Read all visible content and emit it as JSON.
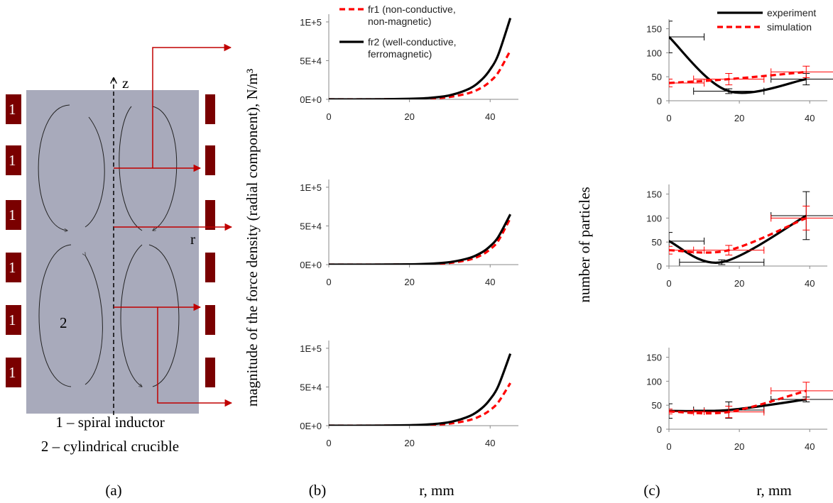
{
  "diagram": {
    "inductor_labels": [
      "1",
      "1",
      "1",
      "1",
      "1",
      "1"
    ],
    "crucible_label": "2",
    "z_label": "z",
    "r_label": "r",
    "legend": [
      "1 – spiral inductor",
      "2 – cylindrical crucible"
    ]
  },
  "panels": {
    "a": {
      "label": "(a)"
    },
    "b": {
      "label": "(b)",
      "xlabel": "r, mm",
      "ylabel": "magnitude of the force density (radial component), N/m³"
    },
    "c": {
      "label": "(c)",
      "xlabel": "r, mm",
      "ylabel": "number of particles"
    }
  },
  "chart_data": [
    {
      "type": "line",
      "xlim": [
        0,
        47
      ],
      "ylim": [
        0,
        110000
      ],
      "xticks": [
        0,
        20,
        40
      ],
      "yticks": [
        {
          "value": 0,
          "label": "0E+0"
        },
        {
          "value": 50000,
          "label": "5E+4"
        },
        {
          "value": 100000,
          "label": "1E+5"
        }
      ],
      "legend": "upper left",
      "x": [
        0,
        10,
        20,
        25,
        30,
        35,
        38,
        40,
        42,
        45
      ],
      "series": [
        {
          "name": "fr1 (non-conductive, non-magnetic)",
          "color": "#ff0000",
          "style": "dashed",
          "values": [
            0,
            0,
            400,
            1100,
            3100,
            8500,
            15500,
            23200,
            34600,
            63000
          ]
        },
        {
          "name": "fr2 (well-conductive, ferromagnetic)",
          "color": "#000000",
          "style": "solid",
          "values": [
            0,
            0,
            700,
            1900,
            5200,
            14200,
            25900,
            38600,
            57600,
            105000
          ]
        }
      ]
    },
    {
      "type": "line",
      "xlim": [
        0,
        47
      ],
      "ylim": [
        0,
        110000
      ],
      "xticks": [
        0,
        20,
        40
      ],
      "yticks": [
        {
          "value": 0,
          "label": "0E+0"
        },
        {
          "value": 50000,
          "label": "5E+4"
        },
        {
          "value": 100000,
          "label": "1E+5"
        }
      ],
      "x": [
        0,
        10,
        20,
        25,
        30,
        35,
        38,
        40,
        42,
        45
      ],
      "series": [
        {
          "color": "#ff0000",
          "style": "dashed",
          "values": [
            0,
            0,
            200,
            700,
            2200,
            6600,
            12800,
            19900,
            30800,
            60000
          ]
        },
        {
          "color": "#000000",
          "style": "solid",
          "values": [
            0,
            0,
            400,
            1200,
            3200,
            8800,
            16000,
            23900,
            35700,
            65000
          ]
        }
      ]
    },
    {
      "type": "line",
      "xlim": [
        0,
        47
      ],
      "ylim": [
        0,
        110000
      ],
      "xticks": [
        0,
        20,
        40
      ],
      "yticks": [
        {
          "value": 0,
          "label": "0E+0"
        },
        {
          "value": 50000,
          "label": "5E+4"
        },
        {
          "value": 100000,
          "label": "1E+5"
        }
      ],
      "x": [
        0,
        10,
        20,
        25,
        30,
        35,
        38,
        40,
        42,
        45
      ],
      "series": [
        {
          "color": "#ff0000",
          "style": "dashed",
          "values": [
            0,
            0,
            400,
            1000,
            2700,
            7400,
            13600,
            20200,
            30200,
            55000
          ]
        },
        {
          "color": "#000000",
          "style": "solid",
          "values": [
            0,
            0,
            600,
            1700,
            4600,
            12600,
            22900,
            34200,
            51000,
            93000
          ]
        }
      ]
    },
    {
      "type": "errorline",
      "xlim": [
        0,
        45
      ],
      "ylim": [
        0,
        170
      ],
      "xticks": [
        0,
        20,
        40
      ],
      "yticks": [
        0,
        50,
        100,
        150
      ],
      "legend": "upper right",
      "series": [
        {
          "name": "experiment",
          "color": "#000000",
          "style": "solid",
          "x": [
            0,
            17,
            39
          ],
          "values": [
            133,
            20,
            45
          ],
          "xerr": [
            10,
            10,
            10
          ],
          "yerr": [
            33,
            5,
            12
          ]
        },
        {
          "name": "simulation",
          "color": "#ff0000",
          "style": "dashed",
          "x": [
            0,
            17,
            39
          ],
          "values": [
            37,
            45,
            60
          ],
          "xerr": [
            10,
            10,
            10
          ],
          "yerr": [
            8,
            12,
            12
          ]
        }
      ]
    },
    {
      "type": "errorline",
      "xlim": [
        0,
        45
      ],
      "ylim": [
        0,
        170
      ],
      "xticks": [
        0,
        20,
        40
      ],
      "yticks": [
        0,
        50,
        100,
        150
      ],
      "series": [
        {
          "color": "#000000",
          "style": "solid",
          "x": [
            0,
            15,
            39
          ],
          "values": [
            52,
            8,
            105
          ],
          "xerr": [
            10,
            12,
            10
          ],
          "yerr": [
            18,
            5,
            50
          ]
        },
        {
          "color": "#ff0000",
          "style": "dashed",
          "x": [
            0,
            17,
            39
          ],
          "values": [
            33,
            33,
            100
          ],
          "xerr": [
            10,
            10,
            10
          ],
          "yerr": [
            8,
            10,
            25
          ]
        }
      ]
    },
    {
      "type": "errorline",
      "xlim": [
        0,
        45
      ],
      "ylim": [
        0,
        170
      ],
      "xticks": [
        0,
        20,
        40
      ],
      "yticks": [
        0,
        50,
        100,
        150
      ],
      "series": [
        {
          "color": "#000000",
          "style": "solid",
          "x": [
            0,
            17,
            39
          ],
          "values": [
            38,
            40,
            62
          ],
          "xerr": [
            10,
            10,
            10
          ],
          "yerr": [
            15,
            17,
            5
          ]
        },
        {
          "color": "#ff0000",
          "style": "dashed",
          "x": [
            0,
            17,
            39
          ],
          "values": [
            37,
            36,
            80
          ],
          "xerr": [
            10,
            10,
            10
          ],
          "yerr": [
            5,
            12,
            18
          ]
        }
      ]
    }
  ]
}
